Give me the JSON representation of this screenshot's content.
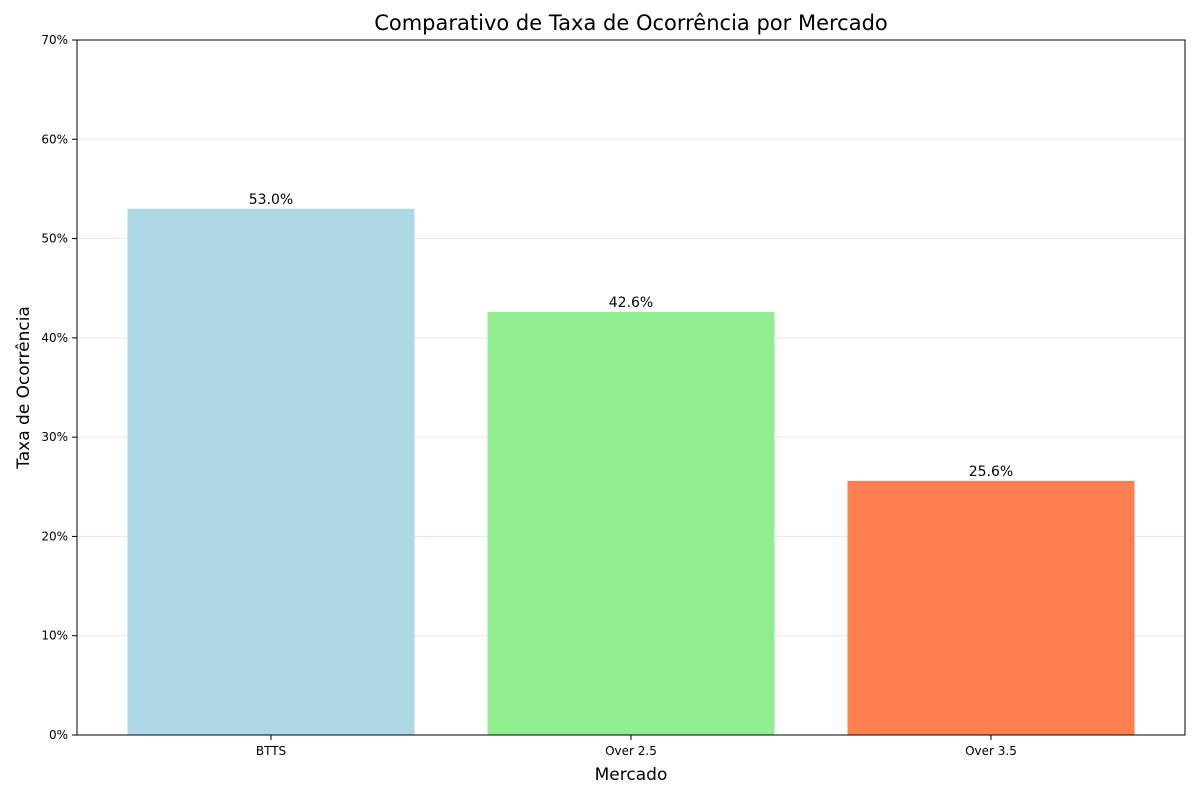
{
  "chart_data": {
    "type": "bar",
    "title": "Comparativo de Taxa de Ocorrência por Mercado",
    "xlabel": "Mercado",
    "ylabel": "Taxa de Ocorrência",
    "categories": [
      "BTTS",
      "Over 2.5",
      "Over 3.5"
    ],
    "values": [
      53.0,
      42.6,
      25.6
    ],
    "value_labels": [
      "53.0%",
      "42.6%",
      "25.6%"
    ],
    "bar_colors": [
      "#add8e6",
      "#90ee90",
      "#ff7f50"
    ],
    "ylim": [
      0,
      70
    ],
    "yticks": [
      0,
      10,
      20,
      30,
      40,
      50,
      60,
      70
    ],
    "ytick_labels": [
      "0%",
      "10%",
      "20%",
      "30%",
      "40%",
      "50%",
      "60%",
      "70%"
    ],
    "grid": true,
    "grid_axis": "y",
    "legend": false
  }
}
